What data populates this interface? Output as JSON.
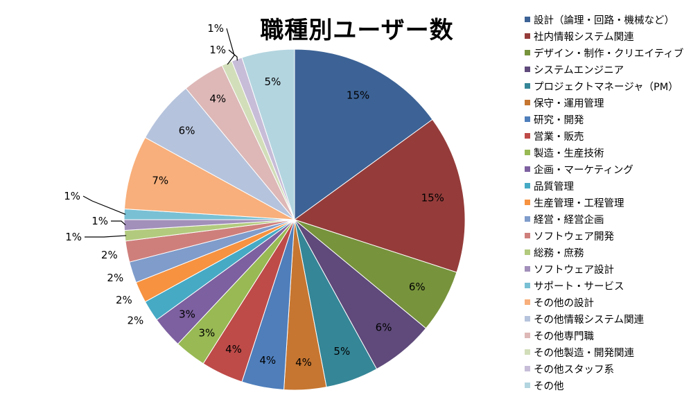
{
  "chart_data": {
    "type": "pie",
    "title": "職種別ユーザー数",
    "legend_position": "right",
    "slices": [
      {
        "name": "設計（論理・回路・機械など）",
        "value": 15,
        "label": "15%",
        "color": "#3D6396"
      },
      {
        "name": "社内情報システム関連",
        "value": 15,
        "label": "15%",
        "color": "#953C3A"
      },
      {
        "name": "デザイン・制作・クリエイティブ",
        "value": 6,
        "label": "6%",
        "color": "#77933C"
      },
      {
        "name": "システムエンジニア",
        "value": 6,
        "label": "6%",
        "color": "#5F4A7B"
      },
      {
        "name": "プロジェクトマネージャ（PM）",
        "value": 5,
        "label": "5%",
        "color": "#358697"
      },
      {
        "name": "保守・運用管理",
        "value": 4,
        "label": "4%",
        "color": "#C67631"
      },
      {
        "name": "研究・開発",
        "value": 4,
        "label": "4%",
        "color": "#4F7EBB"
      },
      {
        "name": "営業・販売",
        "value": 4,
        "label": "4%",
        "color": "#BE4B48"
      },
      {
        "name": "製造・生産技術",
        "value": 3,
        "label": "3%",
        "color": "#98B954"
      },
      {
        "name": "企画・マーケティング",
        "value": 3,
        "label": "3%",
        "color": "#7D60A0"
      },
      {
        "name": "品質管理",
        "value": 2,
        "label": "2%",
        "color": "#46AAC5"
      },
      {
        "name": "生産管理・工程管理",
        "value": 2,
        "label": "2%",
        "color": "#F69240"
      },
      {
        "name": "経営・経営企画",
        "value": 2,
        "label": "2%",
        "color": "#7F9CCB"
      },
      {
        "name": "ソフトウェア開発",
        "value": 2,
        "label": "2%",
        "color": "#CE7F7C"
      },
      {
        "name": "総務・庶務",
        "value": 1,
        "label": "1%",
        "color": "#B2CA7D"
      },
      {
        "name": "ソフトウェア設計",
        "value": 1,
        "label": "1%",
        "color": "#A28FBA"
      },
      {
        "name": "サポート・サービス",
        "value": 1,
        "label": "1%",
        "color": "#79C0D4"
      },
      {
        "name": "その他の設計",
        "value": 7,
        "label": "7%",
        "color": "#F8AF7B"
      },
      {
        "name": "その他情報システム関連",
        "value": 6,
        "label": "6%",
        "color": "#B6C3DC"
      },
      {
        "name": "その他専門職",
        "value": 4,
        "label": "4%",
        "color": "#DDB8B7"
      },
      {
        "name": "その他製造・開発関連",
        "value": 1,
        "label": "1%",
        "color": "#D2DEB9"
      },
      {
        "name": "その他スタッフ系",
        "value": 1,
        "label": "1%",
        "color": "#C8BDD8"
      },
      {
        "name": "その他",
        "value": 5,
        "label": "5%",
        "color": "#B3D5E0"
      }
    ]
  }
}
